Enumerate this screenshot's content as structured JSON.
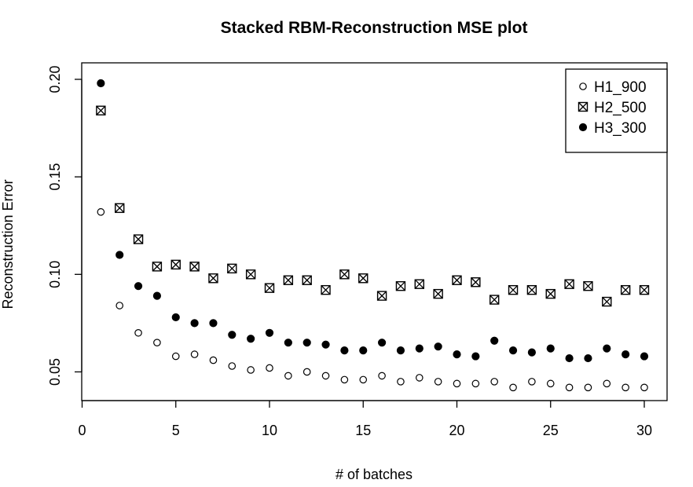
{
  "chart_data": {
    "type": "scatter",
    "title": "Stacked RBM-Reconstruction MSE plot",
    "xlabel": "# of batches",
    "ylabel": "Reconstruction Error",
    "xlim": [
      0,
      30
    ],
    "ylim": [
      0.035,
      0.2
    ],
    "x_ticks": [
      0,
      5,
      10,
      15,
      20,
      25,
      30
    ],
    "y_ticks": [
      0.05,
      0.1,
      0.15,
      0.2
    ],
    "x_tick_labels": [
      "0",
      "5",
      "10",
      "15",
      "20",
      "25",
      "30"
    ],
    "y_tick_labels": [
      "0.05",
      "0.10",
      "0.15",
      "0.20"
    ],
    "grid": false,
    "legend_position": "top-right",
    "x": [
      1,
      2,
      3,
      4,
      5,
      6,
      7,
      8,
      9,
      10,
      11,
      12,
      13,
      14,
      15,
      16,
      17,
      18,
      19,
      20,
      21,
      22,
      23,
      24,
      25,
      26,
      27,
      28,
      29,
      30
    ],
    "series": [
      {
        "name": "H1_900",
        "marker": "open-circle",
        "values": [
          0.132,
          0.084,
          0.07,
          0.065,
          0.058,
          0.059,
          0.056,
          0.053,
          0.051,
          0.052,
          0.048,
          0.05,
          0.048,
          0.046,
          0.046,
          0.048,
          0.045,
          0.047,
          0.045,
          0.044,
          0.044,
          0.045,
          0.042,
          0.045,
          0.044,
          0.042,
          0.042,
          0.044,
          0.042,
          0.042
        ]
      },
      {
        "name": "H2_500",
        "marker": "boxed-x",
        "values": [
          0.184,
          0.134,
          0.118,
          0.104,
          0.105,
          0.104,
          0.098,
          0.103,
          0.1,
          0.093,
          0.097,
          0.097,
          0.092,
          0.1,
          0.098,
          0.089,
          0.094,
          0.095,
          0.09,
          0.097,
          0.096,
          0.087,
          0.092,
          0.092,
          0.09,
          0.095,
          0.094,
          0.086,
          0.092,
          0.092
        ]
      },
      {
        "name": "H3_300",
        "marker": "filled-circle",
        "values": [
          0.198,
          0.11,
          0.094,
          0.089,
          0.078,
          0.075,
          0.075,
          0.069,
          0.067,
          0.07,
          0.065,
          0.065,
          0.064,
          0.061,
          0.061,
          0.065,
          0.061,
          0.062,
          0.063,
          0.059,
          0.058,
          0.066,
          0.061,
          0.06,
          0.062,
          0.057,
          0.057,
          0.062,
          0.059,
          0.058
        ]
      }
    ],
    "colors": {
      "axis": "#000000",
      "marker": "#000000",
      "background": "#ffffff"
    }
  }
}
